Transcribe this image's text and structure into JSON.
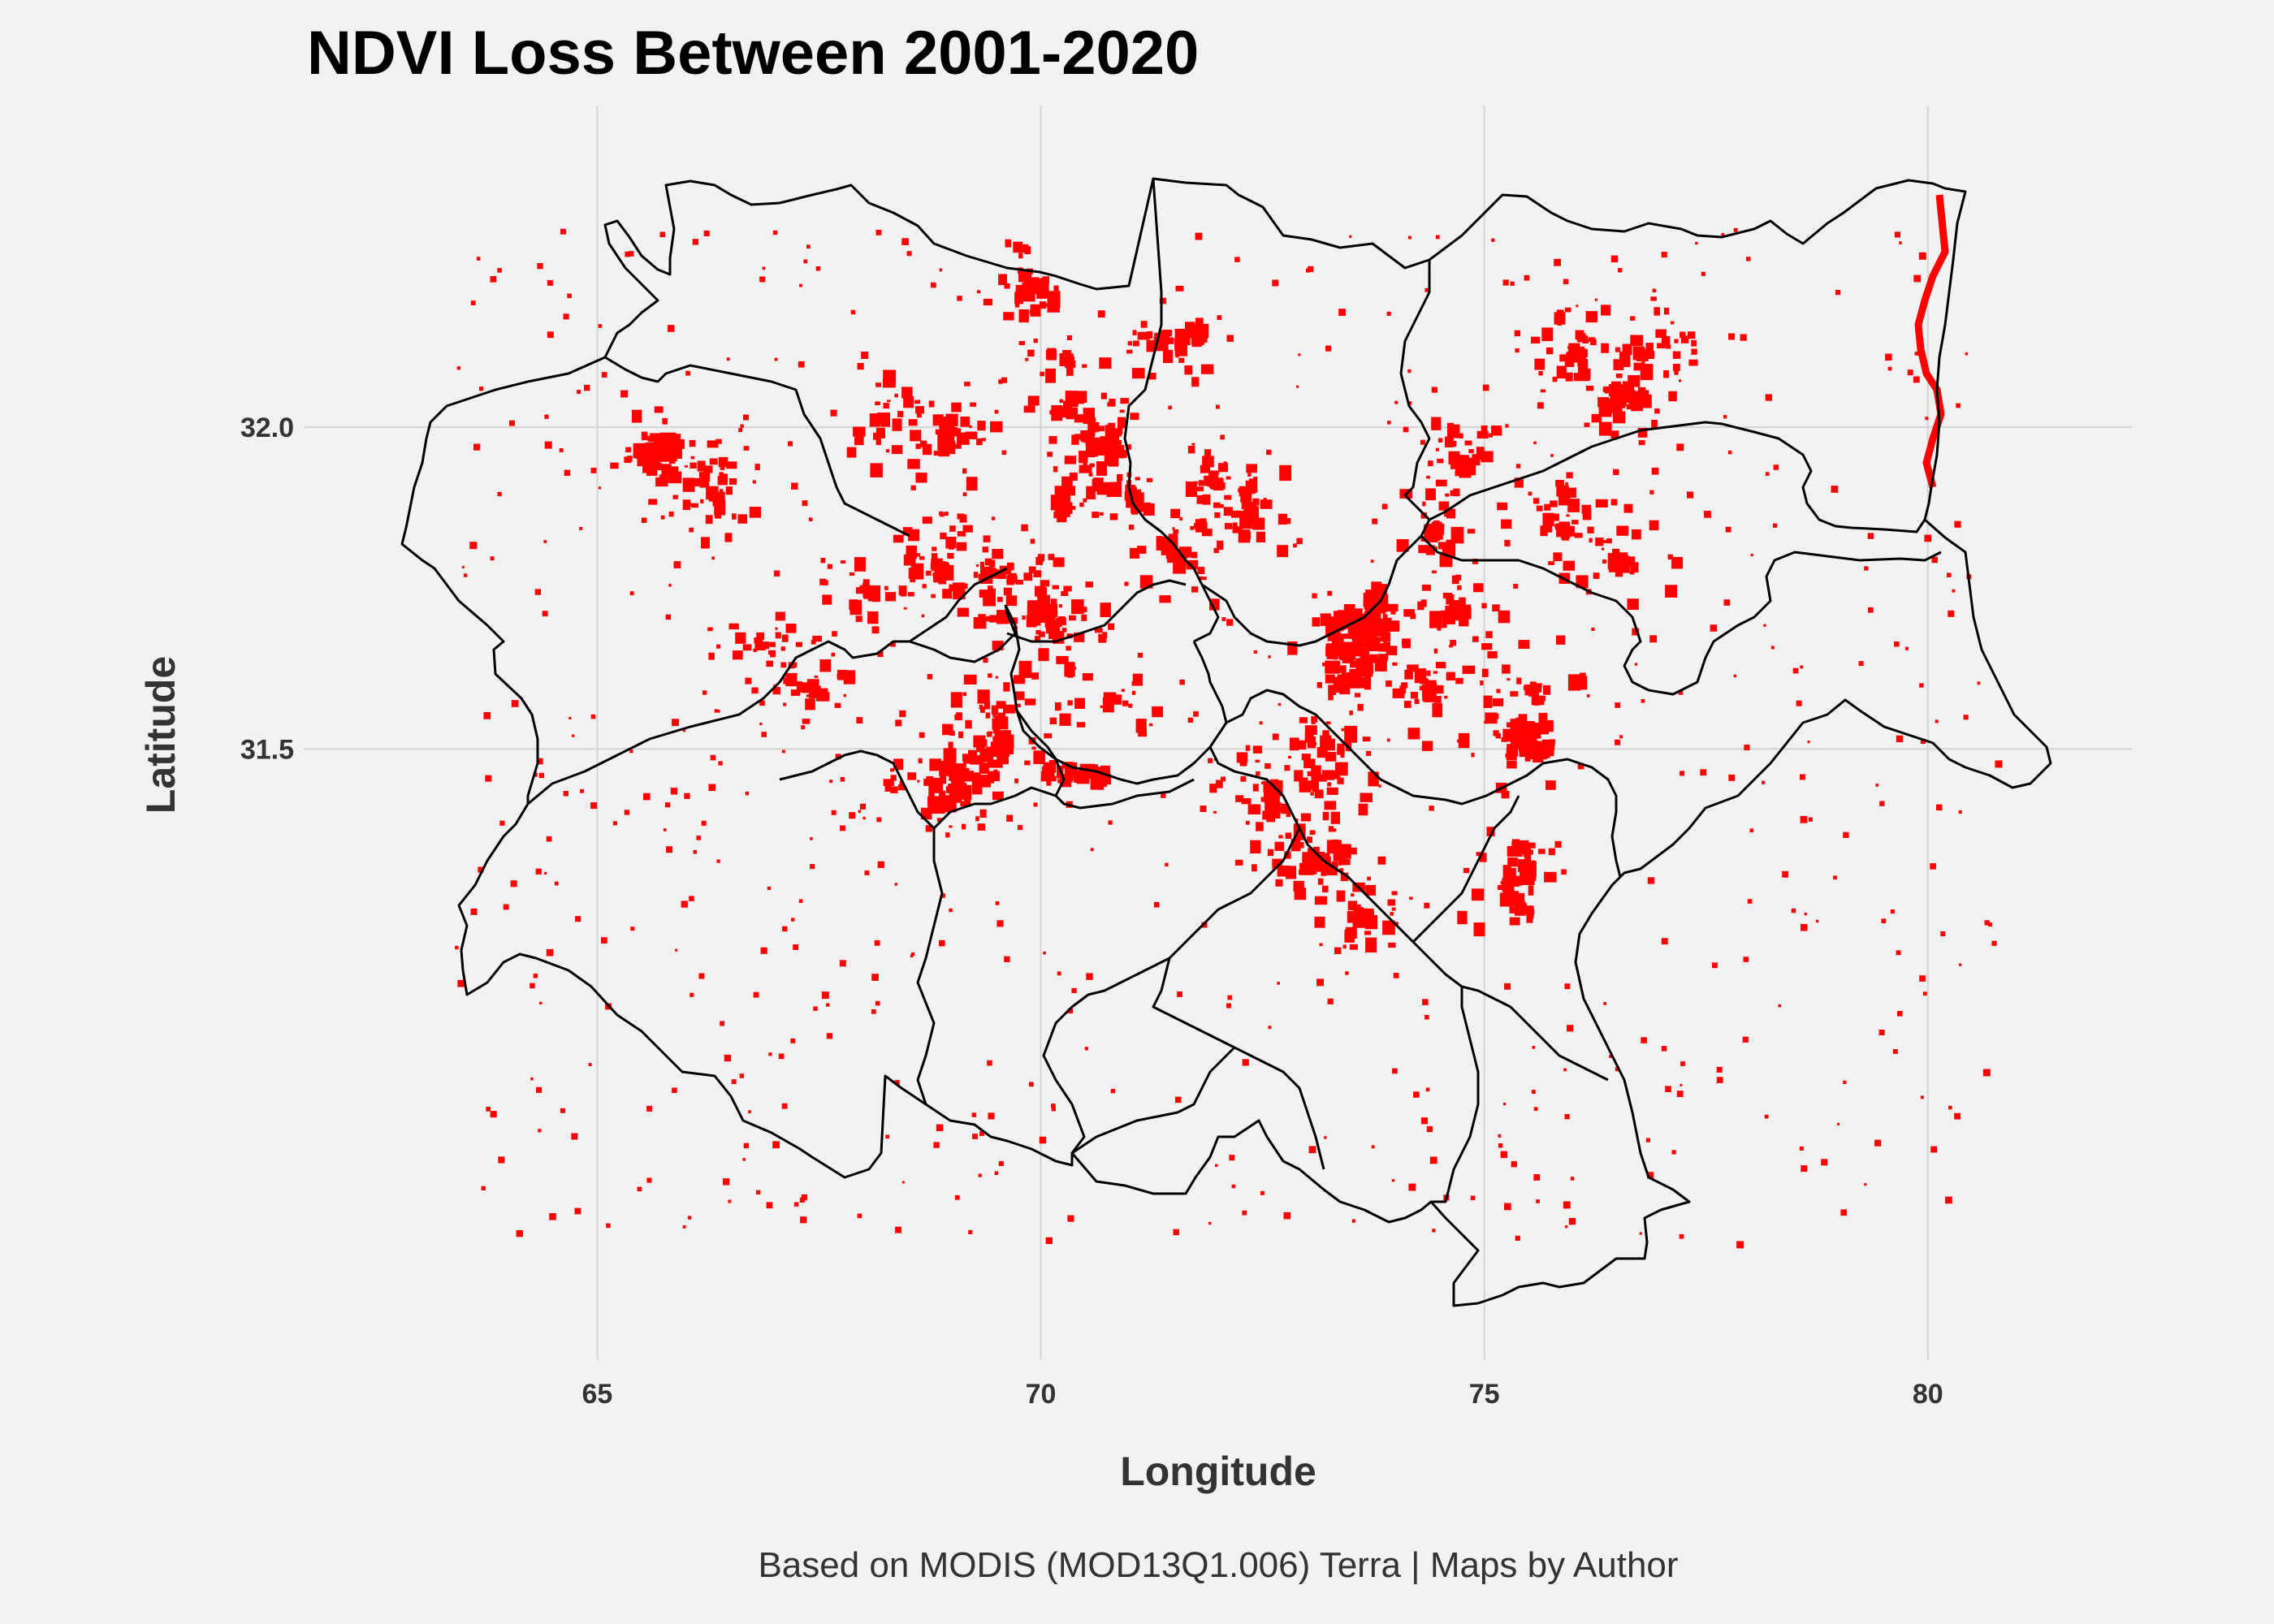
{
  "title": "NDVI Loss Between 2001-2020",
  "caption": "Based on MODIS (MOD13Q1.006) Terra | Maps by Author",
  "colors": {
    "background": "#f2f2f2",
    "grid": "#d4d4d4",
    "boundary": "#000000",
    "loss": "#ff0000"
  },
  "chart_data": {
    "type": "map",
    "xlabel": "Longitude",
    "ylabel": "Latitude",
    "xlim": [
      61.7,
      82.3
    ],
    "ylim": [
      30.55,
      32.5
    ],
    "x_ticks": [
      {
        "value": 65,
        "label": "65"
      },
      {
        "value": 70,
        "label": "70"
      },
      {
        "value": 75,
        "label": "75"
      },
      {
        "value": 80,
        "label": "80"
      }
    ],
    "y_ticks": [
      {
        "value": 32.0,
        "label": "32.0"
      },
      {
        "value": 31.5,
        "label": "31.5"
      }
    ],
    "grid": true,
    "loss_patches": [
      [
        69.8,
        32.22,
        0.3,
        0.03
      ],
      [
        71.5,
        32.14,
        0.4,
        0.05
      ],
      [
        70.2,
        32.1,
        0.2,
        0.05
      ],
      [
        70.5,
        31.98,
        0.45,
        0.06
      ],
      [
        70.1,
        31.88,
        0.3,
        0.07
      ],
      [
        71.3,
        31.81,
        0.3,
        0.05
      ],
      [
        69.9,
        31.72,
        0.3,
        0.05
      ],
      [
        68.7,
        31.44,
        0.5,
        0.09
      ],
      [
        69.2,
        31.5,
        0.5,
        0.06
      ],
      [
        70.0,
        31.46,
        0.8,
        0.05
      ],
      [
        73.2,
        31.65,
        0.6,
        0.14
      ],
      [
        73.6,
        31.7,
        0.35,
        0.1
      ],
      [
        72.9,
        31.33,
        0.7,
        0.06
      ],
      [
        72.5,
        31.42,
        0.25,
        0.07
      ],
      [
        75.3,
        31.51,
        0.5,
        0.07
      ],
      [
        75.2,
        31.3,
        0.4,
        0.13
      ],
      [
        76.4,
        32.05,
        0.6,
        0.05
      ],
      [
        75.9,
        32.1,
        0.3,
        0.06
      ],
      [
        65.4,
        31.97,
        0.6,
        0.05
      ],
      [
        71.7,
        32.15,
        0.2,
        0.05
      ]
    ],
    "loss_cluster_centers": [
      [
        69.8,
        32.22
      ],
      [
        70.3,
        32.05
      ],
      [
        70.5,
        31.98
      ],
      [
        71.3,
        32.14
      ],
      [
        71.5,
        31.8
      ],
      [
        72.3,
        31.88
      ],
      [
        69.9,
        31.72
      ],
      [
        70.7,
        31.58
      ],
      [
        70.1,
        31.7
      ],
      [
        69.5,
        31.55
      ],
      [
        69.3,
        31.46
      ],
      [
        68.7,
        31.42
      ],
      [
        66.8,
        31.67
      ],
      [
        67.3,
        31.6
      ],
      [
        68.0,
        31.75
      ],
      [
        68.8,
        31.79
      ],
      [
        69.4,
        31.78
      ],
      [
        65.6,
        31.95
      ],
      [
        66.3,
        31.9
      ],
      [
        68.3,
        32.02
      ],
      [
        68.9,
        31.99
      ],
      [
        73.4,
        31.66
      ],
      [
        73.8,
        31.7
      ],
      [
        73.2,
        31.52
      ],
      [
        74.6,
        31.72
      ],
      [
        74.3,
        31.6
      ],
      [
        75.3,
        31.52
      ],
      [
        75.2,
        31.3
      ],
      [
        72.8,
        31.34
      ],
      [
        72.4,
        31.42
      ],
      [
        73.1,
        31.44
      ],
      [
        73.6,
        31.25
      ],
      [
        74.4,
        31.85
      ],
      [
        74.8,
        31.95
      ],
      [
        76.5,
        31.8
      ],
      [
        76.4,
        32.04
      ],
      [
        76.0,
        32.12
      ],
      [
        76.8,
        32.13
      ],
      [
        71.9,
        31.92
      ],
      [
        71.0,
        31.9
      ],
      [
        75.8,
        31.85
      ],
      [
        75.5,
        31.6
      ]
    ]
  }
}
